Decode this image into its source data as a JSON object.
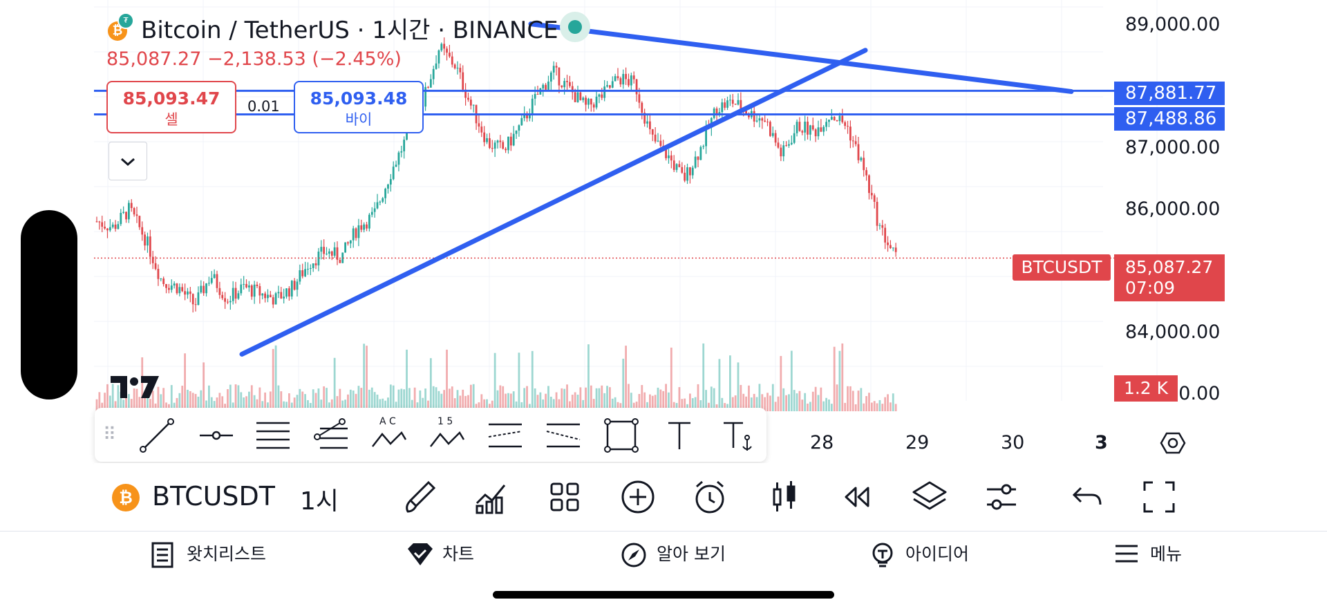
{
  "header": {
    "title": "Bitcoin / TetherUS · 1시간 · BINANCE",
    "coin_badge": "₿",
    "price_change": "85,087.27  −2,138.53 (−2.45%)"
  },
  "trade_panel": {
    "sell_price": "85,093.47",
    "sell_label": "셀",
    "buy_price": "85,093.48",
    "buy_label": "바이",
    "spread": "0.01"
  },
  "price_axis": {
    "labels": [
      "89,000.00",
      "87,000.00",
      "86,000.00",
      "84,000.00",
      "83,000.00"
    ],
    "line_tag_1": "87,881.77",
    "line_tag_2": "87,488.86",
    "current_symbol": "BTCUSDT",
    "current_price": "85,087.27",
    "countdown": "07:09",
    "volume_tag": "1.2 K"
  },
  "time_axis": {
    "labels": [
      "28",
      "29",
      "30",
      "3"
    ]
  },
  "drawing_toolbar": {
    "tools": [
      "trend-line",
      "horizontal-ray",
      "parallel-channel",
      "fib-retracement",
      "abcd-pattern",
      "elliott-wave",
      "long-position",
      "short-position",
      "rectangle",
      "text",
      "anchored-text"
    ],
    "abcd_letters": "A  C",
    "wave_letters": "1  5"
  },
  "bottom_toolbar": {
    "symbol_icon": "₿",
    "symbol": "BTCUSDT",
    "interval": "1시",
    "icons": [
      "brush-icon",
      "indicators-icon",
      "layouts-icon",
      "add-icon",
      "alert-icon",
      "candles-icon",
      "replay-icon",
      "layers-icon",
      "settings-sliders-icon",
      "undo-icon",
      "fullscreen-icon"
    ]
  },
  "bottom_nav": {
    "items": [
      {
        "label": "왓치리스트",
        "icon": "watchlist-icon"
      },
      {
        "label": "차트",
        "icon": "chart-icon"
      },
      {
        "label": "알아 보기",
        "icon": "explore-icon"
      },
      {
        "label": "아이디어",
        "icon": "ideas-icon"
      },
      {
        "label": "메뉴",
        "icon": "menu-icon"
      }
    ]
  },
  "colors": {
    "up": "#26a69a",
    "down": "#e0464b",
    "drawing": "#2f5ff0",
    "grid": "#f0f3fa"
  },
  "chart_data": {
    "type": "candlestick",
    "symbol": "BTCUSDT",
    "interval": "1h",
    "y_range": [
      82700,
      89400
    ],
    "current_price": 85087.27,
    "horizontal_lines": [
      87881.77,
      87488.86
    ],
    "series_close_path": [
      85700,
      85600,
      85900,
      85400,
      84700,
      84600,
      84300,
      84800,
      84400,
      84600,
      84500,
      84400,
      84600,
      85000,
      85200,
      85100,
      85600,
      85800,
      86500,
      87100,
      87700,
      88600,
      88300,
      87600,
      87000,
      86900,
      87300,
      87800,
      88200,
      87900,
      87600,
      87800,
      88100,
      88000,
      87100,
      86800,
      86400,
      86900,
      87600,
      87700,
      87500,
      87400,
      86800,
      87300,
      87200,
      87500,
      87300,
      86600,
      85600,
      85090
    ]
  }
}
